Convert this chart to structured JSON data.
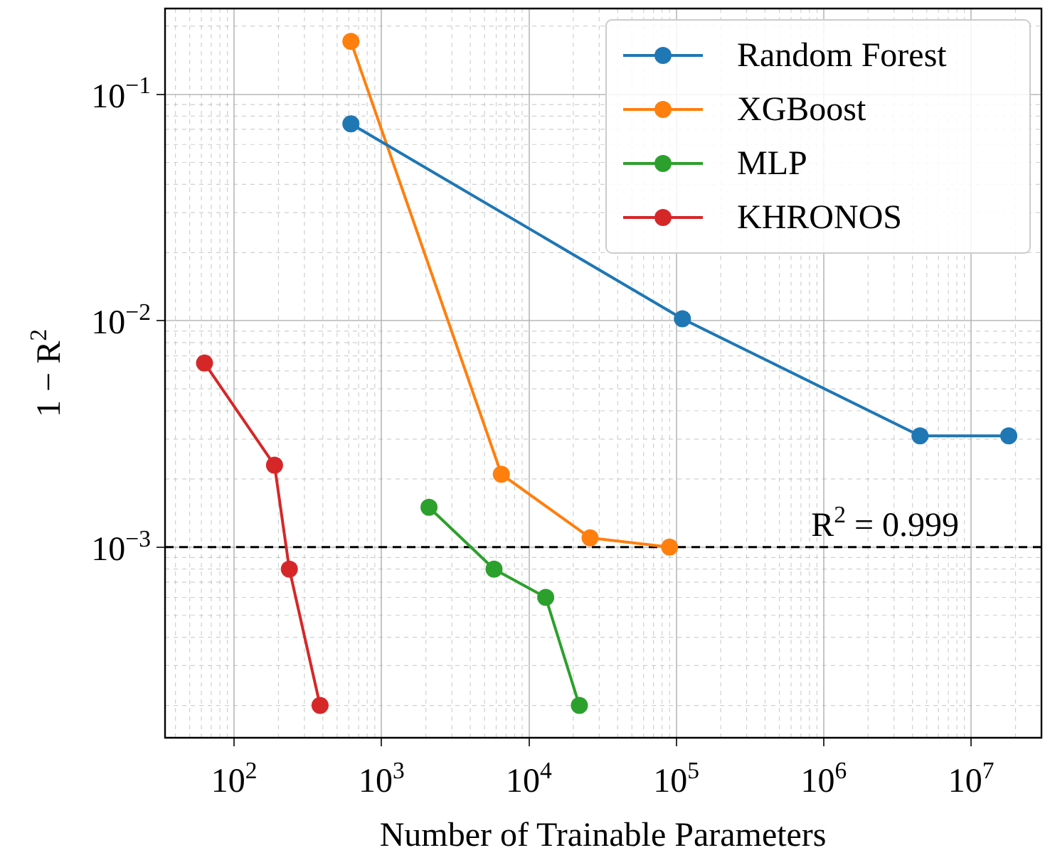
{
  "chart_data": {
    "type": "line",
    "xlabel": "Number of Trainable Parameters",
    "ylabel": "1 − R$^{2}$",
    "log": "xy",
    "grid": true,
    "legend": "top right",
    "marker": "circle",
    "line_style": "solid",
    "xlim": [
      34,
      30000000
    ],
    "ylim": [
      0.000144,
      0.239
    ],
    "xticks": [
      {
        "value": 100,
        "label": "10$^{2}$"
      },
      {
        "value": 1000,
        "label": "10$^{3}$"
      },
      {
        "value": 10000,
        "label": "10$^{4}$"
      },
      {
        "value": 100000,
        "label": "10$^{5}$"
      },
      {
        "value": 1000000,
        "label": "10$^{6}$"
      },
      {
        "value": 10000000,
        "label": "10$^{7}$"
      }
    ],
    "yticks": [
      {
        "value": 0.001,
        "label": "10$^{−3}$"
      },
      {
        "value": 0.01,
        "label": "10$^{−2}$"
      },
      {
        "value": 0.1,
        "label": "10$^{−1}$"
      }
    ],
    "series": [
      {
        "name": "Random Forest",
        "color": "#1f77b4",
        "x": [
          620,
          110000,
          4500000,
          18000000
        ],
        "values": [
          0.074,
          0.0102,
          0.0031,
          0.0031
        ]
      },
      {
        "name": "XGBoost",
        "color": "#ff7f0e",
        "x": [
          620,
          6500,
          26000,
          90000
        ],
        "values": [
          0.171,
          0.0021,
          0.0011,
          0.001
        ]
      },
      {
        "name": "MLP",
        "color": "#2ca02c",
        "x": [
          2100,
          5800,
          13000,
          22000
        ],
        "values": [
          0.0015,
          0.0008,
          0.0006,
          0.0002
        ]
      },
      {
        "name": "KHRONOS",
        "color": "#d62728",
        "x": [
          63,
          188,
          237,
          383
        ],
        "values": [
          0.0065,
          0.0023,
          0.0008,
          0.0002
        ]
      }
    ],
    "ref_lines": [
      {
        "axis": "y",
        "value": 0.001,
        "color": "#000000",
        "line_style": "dashed"
      }
    ],
    "annotations": [
      "R$^{2}$ = 0.999"
    ]
  }
}
